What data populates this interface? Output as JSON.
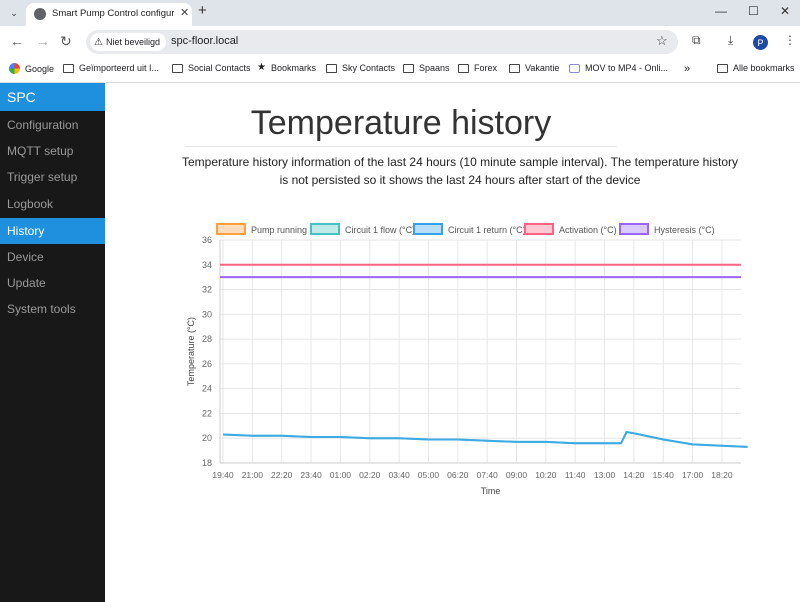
{
  "browser": {
    "tab_title": "Smart Pump Control configurati",
    "security_label": "Niet beveiligd",
    "url": "spc-floor.local",
    "profile_initial": "P",
    "bookmarks": [
      "Google",
      "Geïmporteerd uit I...",
      "Social Contacts",
      "Bookmarks",
      "Sky Contacts",
      "Spaans",
      "Forex",
      "Vakantie",
      "MOV to MP4 - Onli..."
    ],
    "all_bookmarks": "Alle bookmarks"
  },
  "sidebar": {
    "brand": "SPC",
    "items": [
      "Configuration",
      "MQTT setup",
      "Trigger setup",
      "Logbook",
      "History",
      "Device",
      "Update",
      "System tools"
    ],
    "active_index": 4
  },
  "page": {
    "title": "Temperature history",
    "description": "Temperature history information of the last 24 hours (10 minute sample interval). The temperature history is not persisted so it shows the last 24 hours after start of the device"
  },
  "chart_data": {
    "type": "line",
    "xlabel": "Time",
    "ylabel": "Temperature (°C)",
    "ylim": [
      18,
      36
    ],
    "yticks": [
      18,
      20,
      22,
      24,
      26,
      28,
      30,
      32,
      34,
      36
    ],
    "xticks": [
      "19:40",
      "21:00",
      "22:20",
      "23:40",
      "01:00",
      "02:20",
      "03:40",
      "05:00",
      "06:20",
      "07:40",
      "09:00",
      "10:20",
      "11:40",
      "13:00",
      "14:20",
      "15:40",
      "17:00",
      "18:20"
    ],
    "grid": true,
    "legend_position": "top",
    "series": [
      {
        "name": "Pump running",
        "color": "#ff9f40",
        "values": []
      },
      {
        "name": "Circuit 1 flow (°C)",
        "color": "#4bc0c0",
        "points": [
          [
            "19:40",
            20.3
          ],
          [
            "21:00",
            20.2
          ],
          [
            "22:20",
            20.2
          ],
          [
            "23:40",
            20.1
          ],
          [
            "01:00",
            20.1
          ],
          [
            "02:20",
            20.0
          ],
          [
            "03:40",
            20.0
          ],
          [
            "05:00",
            19.9
          ],
          [
            "06:20",
            19.9
          ],
          [
            "07:40",
            19.8
          ],
          [
            "09:00",
            19.7
          ],
          [
            "10:20",
            19.7
          ],
          [
            "11:40",
            19.6
          ],
          [
            "13:00",
            19.6
          ],
          [
            "13:45",
            19.6
          ],
          [
            "14:00",
            20.5
          ],
          [
            "14:20",
            20.4
          ],
          [
            "15:40",
            19.9
          ],
          [
            "17:00",
            19.5
          ],
          [
            "18:20",
            19.4
          ],
          [
            "19:30",
            19.3
          ]
        ]
      },
      {
        "name": "Circuit 1 return (°C)",
        "color": "#36a2eb",
        "points": [
          [
            "19:40",
            20.3
          ],
          [
            "21:00",
            20.2
          ],
          [
            "22:20",
            20.2
          ],
          [
            "23:40",
            20.1
          ],
          [
            "01:00",
            20.1
          ],
          [
            "02:20",
            20.0
          ],
          [
            "03:40",
            20.0
          ],
          [
            "05:00",
            19.9
          ],
          [
            "06:20",
            19.9
          ],
          [
            "07:40",
            19.8
          ],
          [
            "09:00",
            19.7
          ],
          [
            "10:20",
            19.7
          ],
          [
            "11:40",
            19.6
          ],
          [
            "13:00",
            19.6
          ],
          [
            "13:45",
            19.6
          ],
          [
            "14:00",
            20.5
          ],
          [
            "14:20",
            20.4
          ],
          [
            "15:40",
            19.9
          ],
          [
            "17:00",
            19.5
          ],
          [
            "18:20",
            19.4
          ],
          [
            "19:30",
            19.3
          ]
        ]
      },
      {
        "name": "Activation (°C)",
        "color": "#ff6384",
        "constant": 34
      },
      {
        "name": "Hysteresis (°C)",
        "color": "#9966ff",
        "constant": 33
      }
    ]
  }
}
